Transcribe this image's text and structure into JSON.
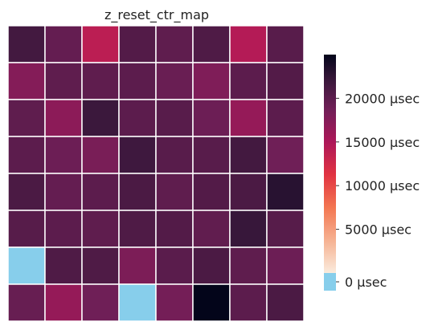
{
  "chart_data": {
    "type": "heatmap",
    "title": "z_reset_ctr_map",
    "xlabel": "",
    "ylabel": "",
    "rows": 8,
    "cols": 8,
    "values": [
      [
        21500,
        19500,
        14000,
        20500,
        19800,
        20800,
        14500,
        20200
      ],
      [
        17500,
        19800,
        19800,
        20000,
        19200,
        17800,
        20000,
        20500
      ],
      [
        19800,
        17000,
        22000,
        20000,
        20200,
        19000,
        16500,
        20000
      ],
      [
        20000,
        19000,
        18200,
        21800,
        20200,
        20200,
        21500,
        18800
      ],
      [
        21000,
        19500,
        20000,
        21000,
        19800,
        20500,
        21000,
        23000
      ],
      [
        20300,
        20000,
        19800,
        20800,
        20500,
        19700,
        22200,
        20300
      ],
      [
        0,
        20800,
        20800,
        18000,
        20100,
        21000,
        19800,
        19000
      ],
      [
        19300,
        16500,
        18800,
        0,
        18500,
        25000,
        20000,
        21000
      ]
    ],
    "zero_color": "#87ceeb",
    "colorbar": {
      "range": [
        0,
        25000
      ],
      "ticks": [
        {
          "value": 0,
          "label": "0 µsec"
        },
        {
          "value": 5000,
          "label": "5000 µsec"
        },
        {
          "value": 10000,
          "label": "10000 µsec"
        },
        {
          "value": 15000,
          "label": "15000 µsec"
        },
        {
          "value": 20000,
          "label": "20000 µsec"
        }
      ]
    },
    "colormap": "rocket_r",
    "grid": true
  }
}
